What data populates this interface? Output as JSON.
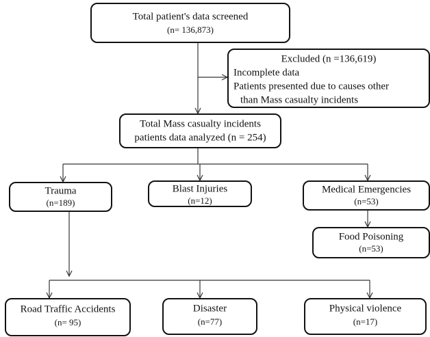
{
  "nodes": [
    {
      "lines": [
        "Total patient's data screened",
        "(n= 136,873)"
      ]
    },
    {
      "lines": [
        "Excluded (n =136,619)",
        "Incomplete data",
        "Patients presented due to causes other",
        "than Mass casualty incidents"
      ]
    },
    {
      "lines": [
        "Total Mass casualty incidents",
        "patients data analyzed (n = 254)"
      ]
    },
    {
      "lines": [
        "Trauma",
        "(n=189)"
      ]
    },
    {
      "lines": [
        "Blast Injuries",
        "(n=12)"
      ]
    },
    {
      "lines": [
        "Medical Emergencies",
        "(n=53)"
      ]
    },
    {
      "lines": [
        "Food Poisoning",
        "(n=53)"
      ]
    },
    {
      "lines": [
        "Road Traffic Accidents",
        "(n= 95)"
      ]
    },
    {
      "lines": [
        "Disaster",
        "(n=77)"
      ]
    },
    {
      "lines": [
        "Physical violence",
        "(n=17)"
      ]
    }
  ]
}
